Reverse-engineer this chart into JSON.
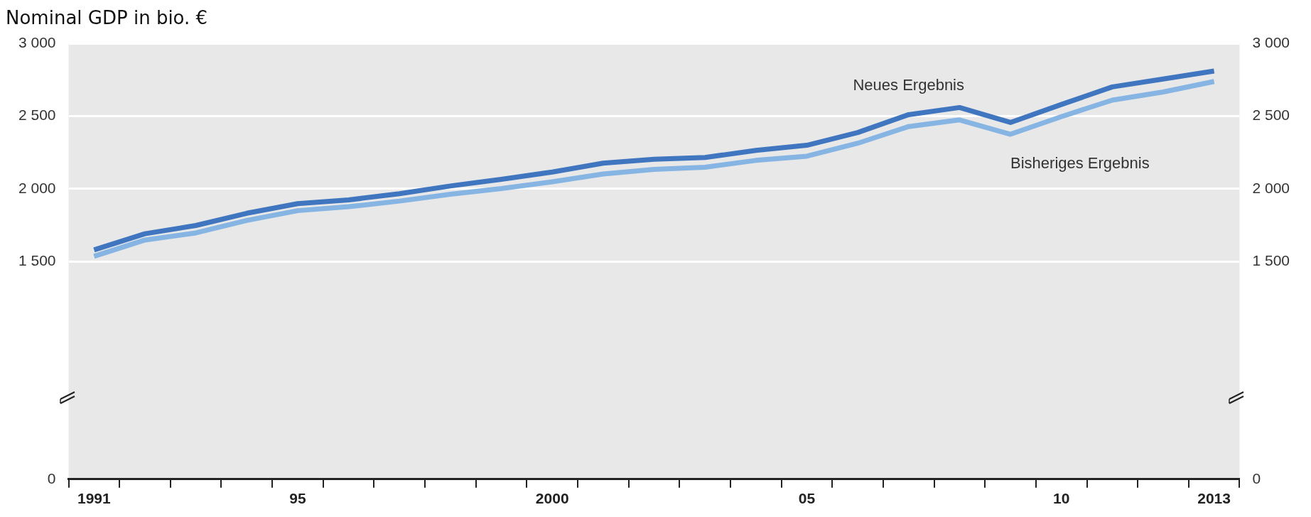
{
  "chart_data": {
    "type": "line",
    "title": "Nominal GDP in bio. €",
    "categories": [
      "1991",
      null,
      null,
      null,
      "95",
      null,
      null,
      null,
      null,
      "2000",
      null,
      null,
      null,
      null,
      "05",
      null,
      null,
      null,
      null,
      "10",
      null,
      null,
      "2013"
    ],
    "series": [
      {
        "name": "Neues Ergebnis",
        "color": "#3f76bf",
        "values": [
          1579,
          1690,
          1747,
          1831,
          1897,
          1923,
          1966,
          2019,
          2065,
          2115,
          2176,
          2203,
          2215,
          2264,
          2299,
          2387,
          2510,
          2559,
          2456,
          2580,
          2701,
          2755,
          2810
        ]
      },
      {
        "name": "Bisheriges Ergebnis",
        "color": "#86b5e3",
        "values": [
          1535,
          1647,
          1696,
          1782,
          1849,
          1876,
          1915,
          1962,
          2001,
          2048,
          2101,
          2133,
          2148,
          2195,
          2224,
          2313,
          2428,
          2474,
          2375,
          2496,
          2610,
          2666,
          2738
        ]
      }
    ],
    "ylim": [
      0,
      3000
    ],
    "yticks": [
      0,
      1500,
      2000,
      2500,
      3000
    ],
    "y2lim": [
      0,
      3000
    ],
    "y2ticks": [
      0,
      1500,
      2000,
      2500,
      3000
    ],
    "grid": "y",
    "legend": false,
    "marker": "none",
    "line_style": "solid"
  }
}
